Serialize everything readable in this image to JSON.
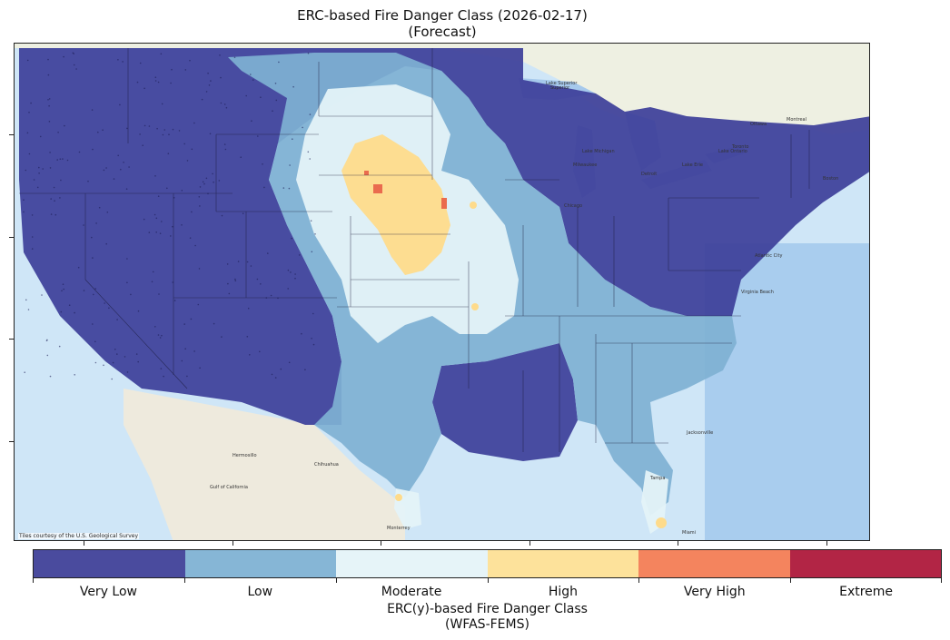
{
  "title": {
    "line1": "ERC-based Fire Danger Class (2026-02-17)",
    "line2": "(Forecast)"
  },
  "map": {
    "credit": "Tiles courtesy of the U.S. Geological Survey",
    "place_labels": [
      "Superior",
      "Milwaukee",
      "Chicago",
      "Detroit",
      "Toronto",
      "Ottawa",
      "Montreal",
      "Boston",
      "Jacksonville",
      "Tampa",
      "Miami",
      "Monterrey",
      "Hermosillo",
      "Chihuahua",
      "Gulf of California",
      "Virginia Beach",
      "Atlantic City",
      "Lake Superior",
      "Lake Michigan",
      "Lake Erie",
      "Lake Ontario"
    ],
    "colors": {
      "ocean": "#cfe6f7",
      "land": "#f1efe6",
      "very_low": "#3d3f9a",
      "low": "#7fb1d3",
      "moderate": "#e4f3f8",
      "high": "#fedb8b",
      "very_high": "#ea6b4e",
      "extreme": "#b2203f"
    }
  },
  "colorbar": {
    "classes": [
      {
        "label": "Very Low",
        "color": "#4a4b9e"
      },
      {
        "label": "Low",
        "color": "#86b6d6"
      },
      {
        "label": "Moderate",
        "color": "#e6f4f8"
      },
      {
        "label": "High",
        "color": "#fde29b"
      },
      {
        "label": "Very High",
        "color": "#f4845e"
      },
      {
        "label": "Extreme",
        "color": "#b22545"
      }
    ],
    "title_line1": "ERC(y)-based Fire Danger Class",
    "title_line2": "(WFAS-FEMS)"
  }
}
